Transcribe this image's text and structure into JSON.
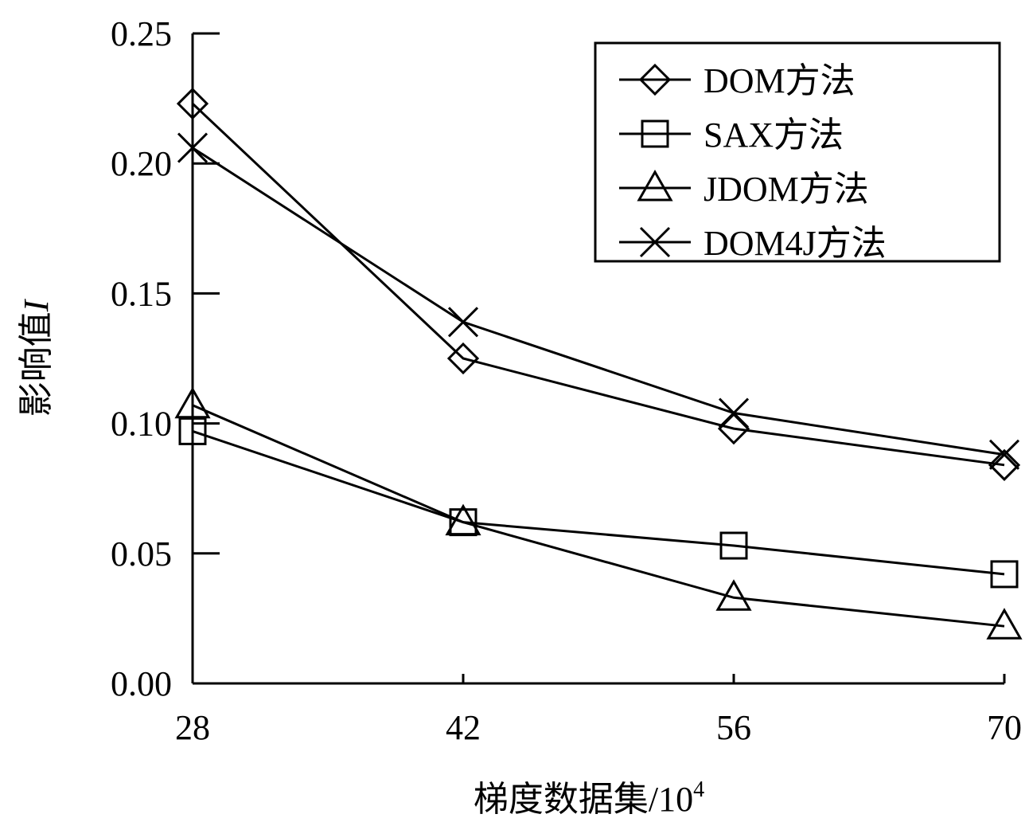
{
  "chart_data": {
    "type": "line",
    "title": "",
    "xlabel": "梯度数据集/10",
    "xlabel_sup": "4",
    "ylabel": "影响值",
    "ylabel_var": "I",
    "x": [
      28,
      42,
      56,
      70
    ],
    "x_tick_labels": [
      "28",
      "42",
      "56",
      "70"
    ],
    "ylim": [
      0,
      0.25
    ],
    "y_tick_labels": [
      "0.00",
      "0.05",
      "0.10",
      "0.15",
      "0.20",
      "0.25"
    ],
    "grid": false,
    "legend_position": "top-right",
    "series": [
      {
        "name": "DOM方法",
        "marker": "diamond",
        "values": [
          0.223,
          0.125,
          0.098,
          0.084
        ]
      },
      {
        "name": "SAX方法",
        "marker": "square",
        "values": [
          0.097,
          0.062,
          0.053,
          0.042
        ]
      },
      {
        "name": "JDOM方法",
        "marker": "triangle",
        "values": [
          0.107,
          0.062,
          0.033,
          0.022
        ]
      },
      {
        "name": "DOM4J方法",
        "marker": "x",
        "values": [
          0.206,
          0.139,
          0.104,
          0.088
        ]
      }
    ],
    "line_color": "#000000"
  }
}
